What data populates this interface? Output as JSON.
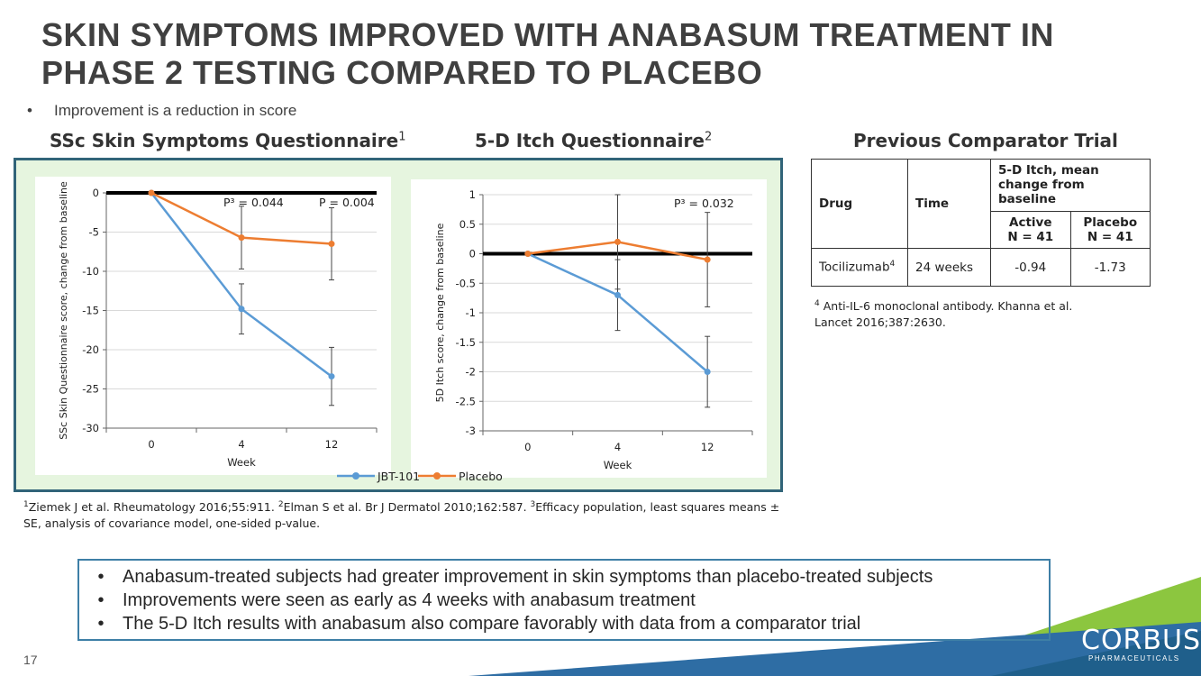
{
  "slide": {
    "title_line1": "SKIN SYMPTOMS IMPROVED WITH ANABASUM TREATMENT IN",
    "title_line2": "PHASE 2 TESTING COMPARED TO PLACEBO",
    "sub_bullet_mark": "•",
    "sub_bullet": "Improvement is a reduction in score",
    "page_number": "17",
    "logo_text": "CORBUS",
    "logo_subtext": "PHARMACEUTICALS"
  },
  "headings": {
    "chart1": "SSc Skin Symptoms Questionnaire",
    "chart1_sup": "1",
    "chart2": "5-D Itch Questionnaire",
    "chart2_sup": "2",
    "comparator": "Previous Comparator Trial"
  },
  "legend": {
    "jbt": "JBT-101",
    "placebo": "Placebo"
  },
  "colors": {
    "jbt": "#5b9bd5",
    "placebo": "#ed7d31",
    "frame": "#316479",
    "frame_bg": "#e6f5df",
    "summary_border": "#3e7fa6"
  },
  "chart_data": [
    {
      "type": "line",
      "title": "SSc Skin Symptoms Questionnaire",
      "xlabel": "Week",
      "ylabel": "SSc Skin Questionnaire score, change from baseline",
      "categories": [
        "0",
        "4",
        "12"
      ],
      "ylim": [
        -30,
        0
      ],
      "yticks": [
        0,
        -5,
        -10,
        -15,
        -20,
        -25,
        -30
      ],
      "ytick_labels": [
        "0",
        "-5",
        "-10",
        "-15",
        "-20",
        "-25",
        "-30"
      ],
      "series": [
        {
          "name": "JBT-101",
          "values": [
            0,
            -14.8,
            -23.4
          ],
          "err": [
            0,
            3.2,
            3.7
          ]
        },
        {
          "name": "Placebo",
          "values": [
            0,
            -5.7,
            -6.5
          ],
          "err": [
            0,
            4.0,
            4.6
          ]
        }
      ],
      "annotations": [
        "P³ = 0.044",
        "P = 0.004"
      ]
    },
    {
      "type": "line",
      "title": "5-D Itch Questionnaire",
      "xlabel": "Week",
      "ylabel": "5D Itch score, change from baseline",
      "categories": [
        "0",
        "4",
        "12"
      ],
      "ylim": [
        -3,
        1
      ],
      "yticks": [
        1,
        0.5,
        0,
        -0.5,
        -1,
        -1.5,
        -2,
        -2.5,
        -3
      ],
      "ytick_labels": [
        "1",
        "0.5",
        "0",
        "-0.5",
        "-1",
        "-1.5",
        "-2",
        "-2.5",
        "-3"
      ],
      "series": [
        {
          "name": "JBT-101",
          "values": [
            0,
            -0.7,
            -2.0
          ],
          "err": [
            0,
            0.6,
            0.6
          ]
        },
        {
          "name": "Placebo",
          "values": [
            0,
            0.2,
            -0.1
          ],
          "err": [
            0,
            0.8,
            0.8
          ]
        }
      ],
      "annotations": [
        "P³ = 0.032"
      ]
    }
  ],
  "footnote": {
    "s1": "1",
    "t1": "Ziemek J et al. Rheumatology 2016;55:911. ",
    "s2": "2",
    "t2": "Elman S et al. Br J Dermatol 2010;162:587. ",
    "s3": "3",
    "t3": "Efficacy population, least squares means ± SE, analysis of covariance model, one-sided p-value."
  },
  "comparator_table": {
    "h_drug": "Drug",
    "h_time": "Time",
    "h_group": "5-D Itch, mean change from baseline",
    "h_active": "Active",
    "h_active_n": "N = 41",
    "h_placebo": "Placebo",
    "h_placebo_n": "N = 41",
    "drug": "Tocilizumab",
    "drug_sup": "4",
    "time": "24 weeks",
    "active": "-0.94",
    "placebo": "-1.73"
  },
  "comparator_note": {
    "sup": "4",
    "text": "Anti-IL-6 monoclonal antibody. Khanna et al. Lancet 2016;387:2630."
  },
  "summary": {
    "bullet": "•",
    "items": [
      "Anabasum-treated subjects had greater improvement in skin symptoms than placebo-treated subjects",
      "Improvements were seen as early as 4 weeks with anabasum treatment",
      "The 5-D Itch results with anabasum also compare favorably with data from a comparator trial"
    ]
  }
}
